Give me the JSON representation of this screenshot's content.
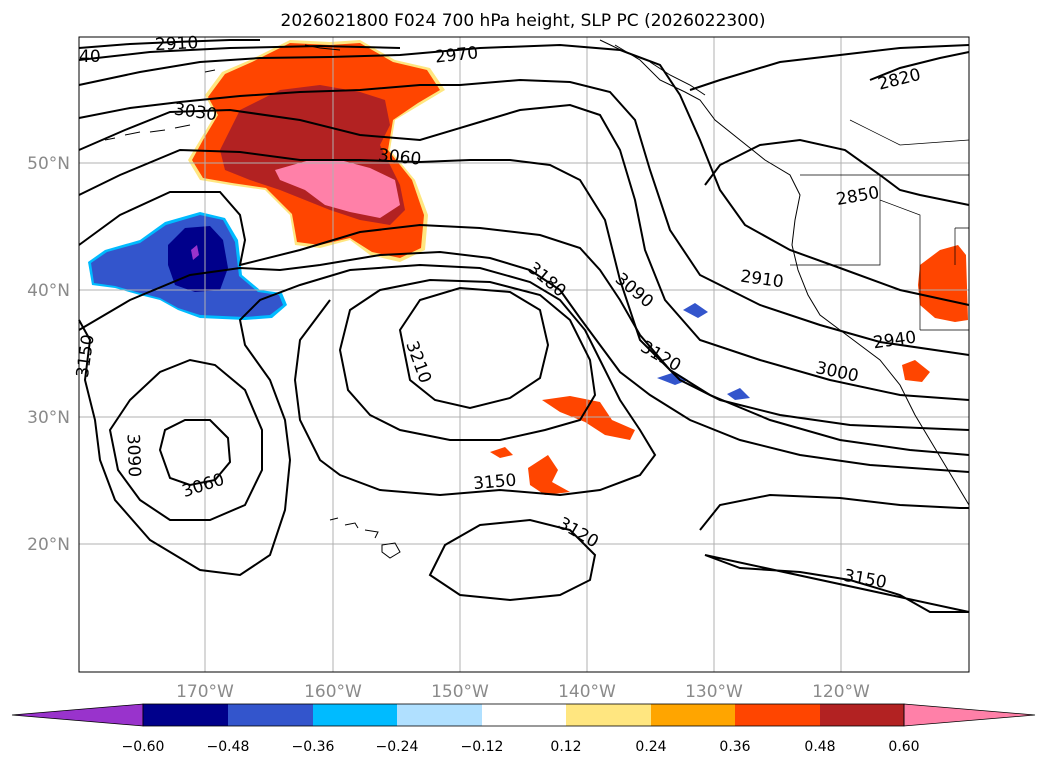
{
  "title": "2026021800 F024 700 hPa height, SLP PC (2026022300)",
  "lat_labels": [
    "50°N",
    "40°N",
    "30°N",
    "20°N"
  ],
  "lon_labels": [
    "170°W",
    "160°W",
    "150°W",
    "140°W",
    "130°W",
    "120°W"
  ],
  "contour_labels": {
    "c2910_top": "2910",
    "c2970": "2970",
    "c3030": "3030",
    "c3060_top": "3060",
    "c2820": "2820",
    "c2850": "2850",
    "c2910_right": "2910",
    "c2940": "2940",
    "c3000": "3000",
    "c3180": "3180",
    "c3090_mid": "3090",
    "c3120_mid": "3120",
    "c3210": "3210",
    "c3150_left": "3150",
    "c3090_left": "3090",
    "c3060_low": "3060",
    "c3150_mid": "3150",
    "c3120_low": "3120",
    "c3150_right": "3150",
    "c40_edge": "40"
  },
  "colorbar": {
    "ticks": [
      "−0.60",
      "−0.48",
      "−0.36",
      "−0.24",
      "−0.12",
      "0.12",
      "0.24",
      "0.36",
      "0.48",
      "0.60"
    ],
    "colors": {
      "under": "#9933cc",
      "b1": "#00008b",
      "b2": "#3355cc",
      "b3": "#00bbff",
      "b4": "#b0e0ff",
      "b5": "#ffffff",
      "b6": "#ffe680",
      "b7": "#ffa500",
      "b8": "#ff4500",
      "b9": "#b22222",
      "b10": "#ff80a8",
      "over": "#ff80a8"
    }
  }
}
